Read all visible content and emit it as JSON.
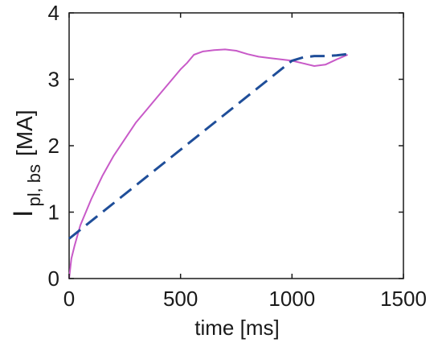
{
  "chart_data": {
    "type": "line",
    "xlabel": "time [ms]",
    "ylabel": {
      "main": "I",
      "sub": "pl, bs",
      "unit": "[MA]"
    },
    "xlim": [
      0,
      1500
    ],
    "ylim": [
      0,
      4
    ],
    "xticks": [
      0,
      500,
      1000,
      1500
    ],
    "yticks": [
      0,
      1,
      2,
      3,
      4
    ],
    "grid": false,
    "series": [
      {
        "color": "#c85ac8",
        "style": "solid",
        "x": [
          0,
          10,
          25,
          50,
          100,
          150,
          200,
          250,
          300,
          350,
          400,
          450,
          500,
          530,
          560,
          600,
          650,
          700,
          750,
          800,
          850,
          900,
          950,
          1000,
          1050,
          1100,
          1150,
          1200,
          1250
        ],
        "y": [
          0.0,
          0.3,
          0.5,
          0.8,
          1.2,
          1.55,
          1.85,
          2.1,
          2.35,
          2.55,
          2.75,
          2.95,
          3.15,
          3.25,
          3.37,
          3.42,
          3.44,
          3.45,
          3.43,
          3.38,
          3.34,
          3.32,
          3.3,
          3.28,
          3.24,
          3.2,
          3.22,
          3.3,
          3.37
        ]
      },
      {
        "color": "#1f4e99",
        "style": "dashed",
        "x": [
          0,
          1000,
          1050,
          1100,
          1150,
          1200,
          1250
        ],
        "y": [
          0.6,
          3.28,
          3.33,
          3.35,
          3.35,
          3.36,
          3.38
        ]
      }
    ]
  }
}
